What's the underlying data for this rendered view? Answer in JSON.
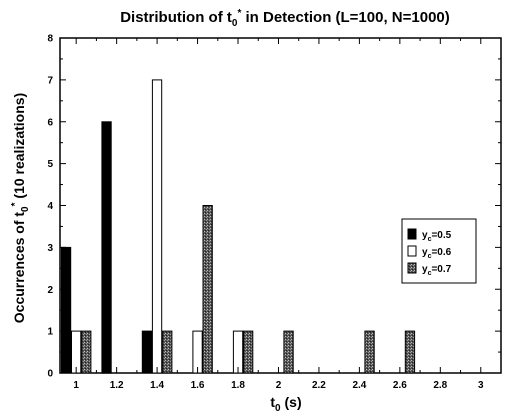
{
  "chart_data": {
    "type": "bar",
    "title": "Distribution of t0* in Detection (L=100, N=1000)",
    "title_parts": {
      "pre": "Distribution of t",
      "sub": "0",
      "sup": "*",
      "post": " in Detection (L=100, N=1000)"
    },
    "xlabel": "t0 (s)",
    "xlabel_parts": {
      "pre": "t",
      "sub": "0",
      "post": " (s)"
    },
    "ylabel": "Occurrences of t0* (10 realizations)",
    "ylabel_parts": {
      "pre": "Occurrences of t",
      "sub": "0",
      "sup": "*",
      "post": " (10 realizations)"
    },
    "xlim": [
      0.92,
      3.1
    ],
    "ylim": [
      0,
      8
    ],
    "x_ticks": [
      "1",
      "1.2",
      "1.4",
      "1.6",
      "1.8",
      "2",
      "2.2",
      "2.4",
      "2.6",
      "2.8",
      "3"
    ],
    "y_ticks": [
      "0",
      "1",
      "2",
      "3",
      "4",
      "5",
      "6",
      "7",
      "8"
    ],
    "legend_position": "right",
    "grid": false,
    "series": [
      {
        "name": "yc=0.5",
        "name_parts": {
          "pre": "y",
          "sub": "c",
          "post": "=0.5"
        },
        "style": "solid",
        "color": "#000000",
        "x": [
          0.95,
          1.15,
          1.35
        ],
        "values": [
          3,
          6,
          1
        ]
      },
      {
        "name": "yc=0.6",
        "name_parts": {
          "pre": "y",
          "sub": "c",
          "post": "=0.6"
        },
        "style": "open",
        "color": "#ffffff",
        "x": [
          1.0,
          1.4,
          1.6,
          1.8
        ],
        "values": [
          1,
          7,
          1,
          1
        ]
      },
      {
        "name": "yc=0.7",
        "name_parts": {
          "pre": "y",
          "sub": "c",
          "post": "=0.7"
        },
        "style": "stippled",
        "color": "#5a5a5a",
        "x": [
          1.05,
          1.45,
          1.65,
          1.85,
          2.05,
          2.45,
          2.65
        ],
        "values": [
          1,
          1,
          4,
          1,
          1,
          1,
          1
        ]
      }
    ]
  }
}
